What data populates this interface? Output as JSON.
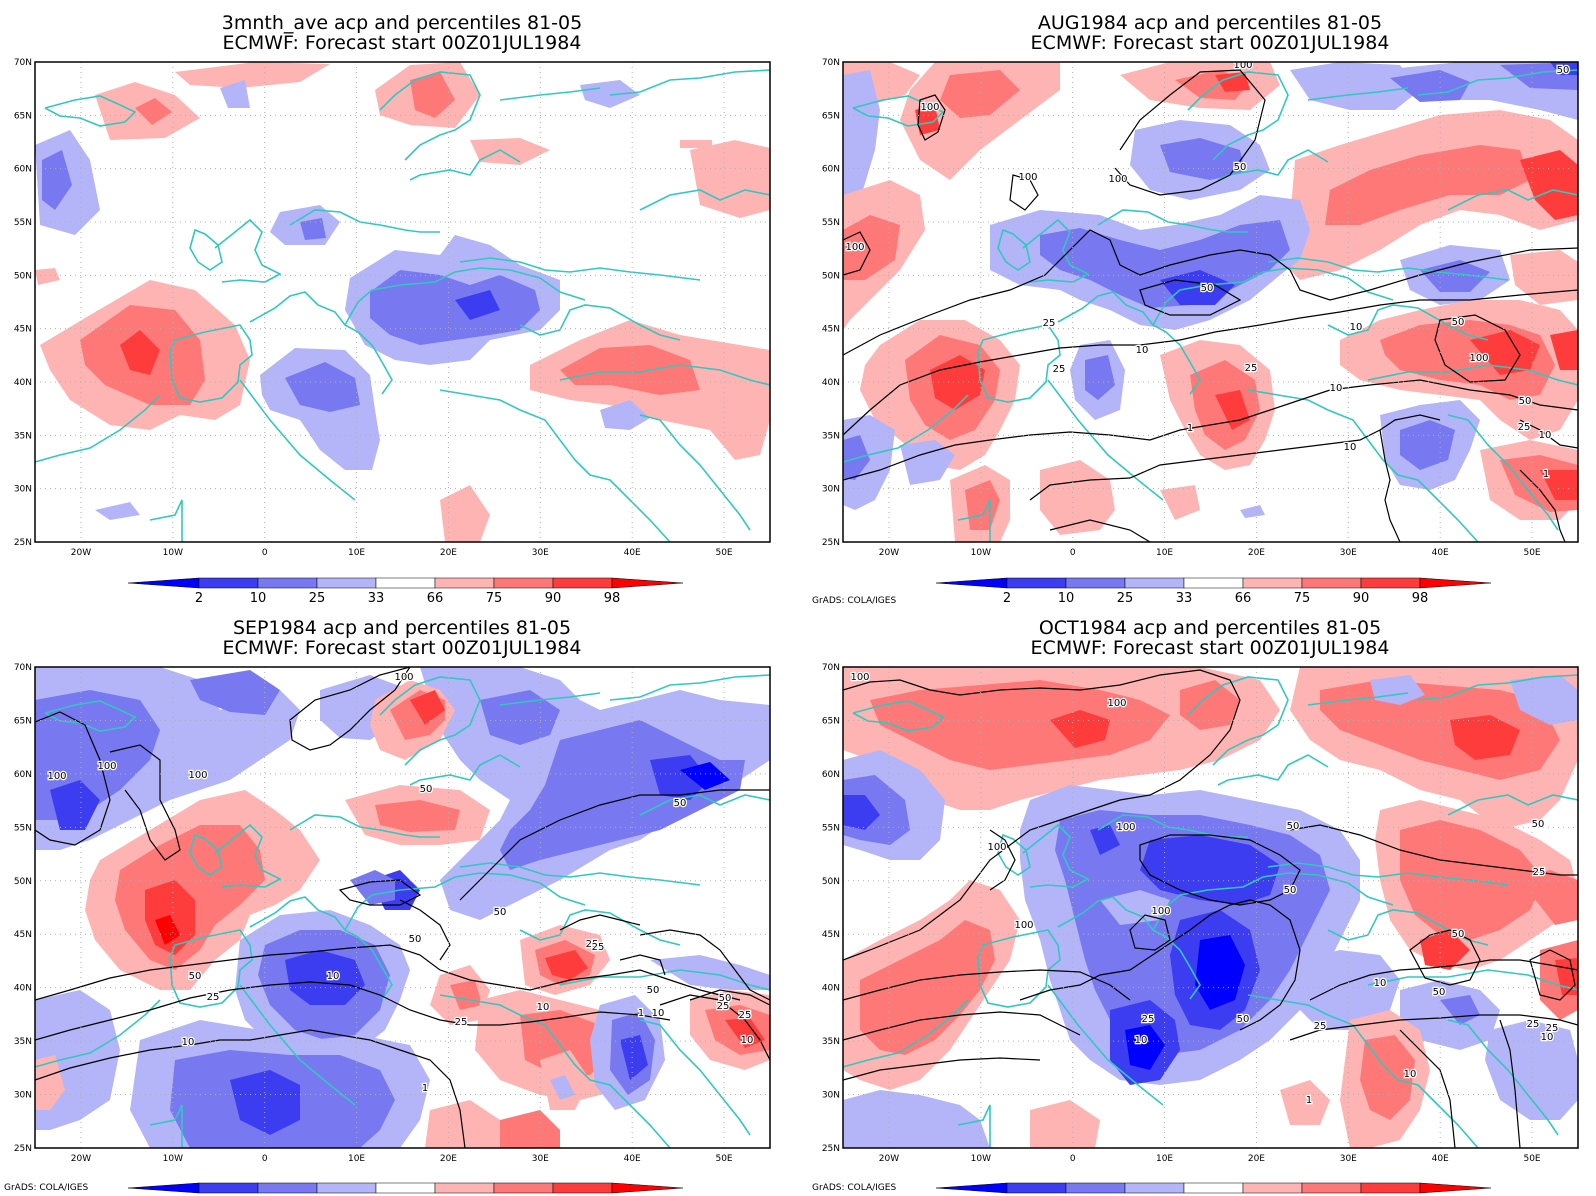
{
  "panels": [
    {
      "title_line1": "3mnth_ave acp and percentiles 81-05",
      "title_line2": "ECMWF: Forecast start 00Z01JUL1984",
      "credit": ""
    },
    {
      "title_line1": "AUG1984 acp and percentiles 81-05",
      "title_line2": "ECMWF: Forecast start 00Z01JUL1984",
      "credit": "GrADS: COLA/IGES"
    },
    {
      "title_line1": "SEP1984 acp and percentiles 81-05",
      "title_line2": "ECMWF: Forecast start 00Z01JUL1984",
      "credit": "GrADS: COLA/IGES"
    },
    {
      "title_line1": "OCT1984 acp and percentiles 81-05",
      "title_line2": "ECMWF: Forecast start 00Z01JUL1984",
      "credit": "GrADS: COLA/IGES"
    }
  ],
  "lat_labels": [
    "70N",
    "65N",
    "60N",
    "55N",
    "50N",
    "45N",
    "40N",
    "35N",
    "30N",
    "25N"
  ],
  "lon_labels": [
    "20W",
    "10W",
    "0",
    "10E",
    "20E",
    "30E",
    "40E",
    "50E"
  ],
  "colorbar": {
    "labels": [
      "2",
      "10",
      "25",
      "33",
      "66",
      "75",
      "90",
      "98"
    ],
    "colors": [
      "#0000ff",
      "#3c3cf0",
      "#7878f0",
      "#b4b4f8",
      "#ffffff",
      "#ffb4b4",
      "#ff7878",
      "#ff3c3c",
      "#ff0000"
    ]
  },
  "colors": {
    "coast": "#30c8c0",
    "contour": "#000000",
    "grid": "#b0b0b0"
  },
  "contour_labels": [
    [],
    [
      "100",
      "100",
      "50",
      "100",
      "50",
      "100",
      "100",
      "50",
      "10",
      "50",
      "100",
      "25",
      "10",
      "25",
      "25",
      "10",
      "1",
      "1",
      "10",
      "25",
      "50",
      "10",
      "1"
    ],
    [
      "100",
      "100",
      "100",
      "100",
      "50",
      "50",
      "50",
      "50",
      "25",
      "25",
      "50",
      "25",
      "10",
      "10",
      "25",
      "10",
      "1",
      "10",
      "50",
      "25",
      "10",
      "1",
      "25",
      "50"
    ],
    [
      "100",
      "100",
      "100",
      "100",
      "50",
      "50",
      "100",
      "100",
      "50",
      "50",
      "25",
      "10",
      "25",
      "10",
      "50",
      "25",
      "10",
      "1",
      "50",
      "25",
      "10",
      "25"
    ]
  ]
}
